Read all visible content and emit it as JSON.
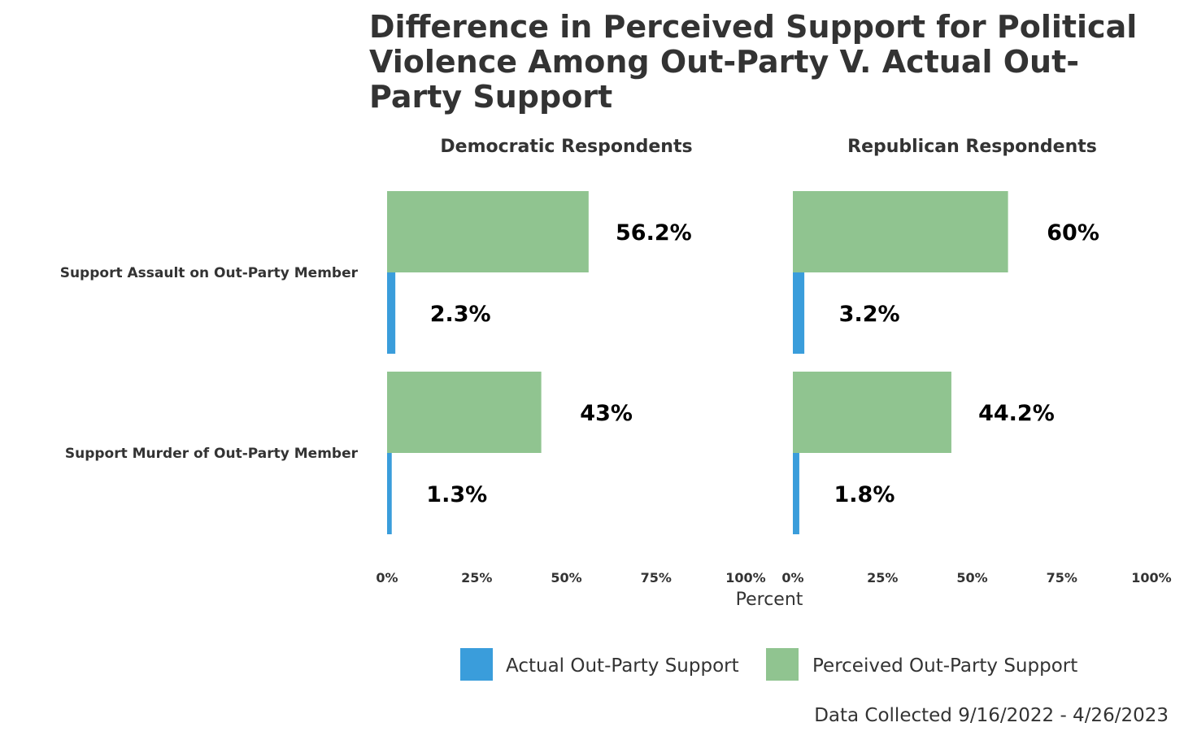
{
  "chart_data": {
    "type": "bar",
    "orientation": "horizontal",
    "title": "Difference in Perceived Support for Political Violence Among Out-Party V. Actual Out-Party Support",
    "xlabel": "Percent",
    "xlim": [
      0,
      100
    ],
    "x_ticks": [
      "0%",
      "25%",
      "50%",
      "75%",
      "100%"
    ],
    "categories": [
      "Support Assault on Out-Party Member",
      "Support Murder of Out-Party Member"
    ],
    "facets": [
      {
        "name": "Democratic Respondents",
        "series": [
          {
            "name": "Perceived Out-Party Support",
            "values": [
              56.2,
              43
            ],
            "labels": [
              "56.2%",
              "43%"
            ]
          },
          {
            "name": "Actual Out-Party Support",
            "values": [
              2.3,
              1.3
            ],
            "labels": [
              "2.3%",
              "1.3%"
            ]
          }
        ]
      },
      {
        "name": "Republican Respondents",
        "series": [
          {
            "name": "Perceived Out-Party Support",
            "values": [
              60,
              44.2
            ],
            "labels": [
              "60%",
              "44.2%"
            ]
          },
          {
            "name": "Actual Out-Party Support",
            "values": [
              3.2,
              1.8
            ],
            "labels": [
              "3.2%",
              "1.8%"
            ]
          }
        ]
      }
    ],
    "legend": {
      "placement": "bottom",
      "items": [
        {
          "name": "Actual Out-Party Support",
          "color": "#3a9ddb"
        },
        {
          "name": "Perceived Out-Party Support",
          "color": "#90c490"
        }
      ]
    },
    "caption": "Data Collected 9/16/2022 - 4/26/2023",
    "colors": {
      "actual": "#3a9ddb",
      "perceived": "#90c490"
    },
    "grid": false
  }
}
